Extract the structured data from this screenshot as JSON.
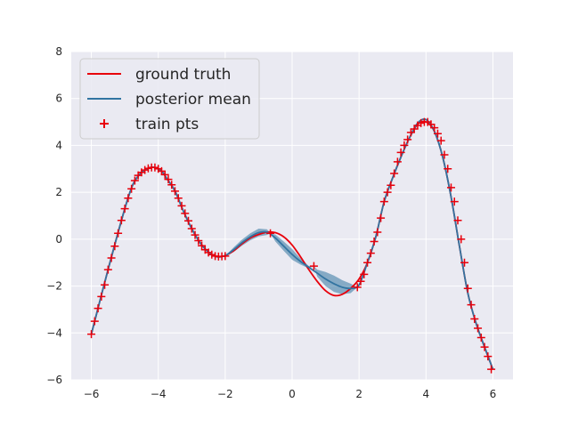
{
  "chart_data": {
    "type": "line",
    "title": "",
    "xlabel": "",
    "ylabel": "",
    "xlim": [
      -6.6,
      6.6
    ],
    "ylim": [
      -6,
      8
    ],
    "xticks": [
      -6,
      -4,
      -2,
      0,
      2,
      4,
      6
    ],
    "yticks": [
      -6,
      -4,
      -2,
      0,
      2,
      4,
      6,
      8
    ],
    "grid": true,
    "legend_position": "top-left",
    "colors": {
      "ground_truth": "#e8000b",
      "posterior_mean": "#3274a1",
      "band": "#3274a1",
      "train_pts": "#e8000b",
      "axes_bg": "#eaeaf2",
      "grid": "#ffffff"
    },
    "series": [
      {
        "name": "ground truth",
        "style": "line",
        "x": [
          -6.0,
          -5.5,
          -5.0,
          -4.75,
          -4.5,
          -4.25,
          -4.1,
          -3.9,
          -3.75,
          -3.5,
          -3.25,
          -3.0,
          -2.75,
          -2.5,
          -2.25,
          -2.0,
          -1.75,
          -1.5,
          -1.25,
          -1.0,
          -0.75,
          -0.5,
          -0.25,
          0.0,
          0.25,
          0.5,
          0.75,
          1.0,
          1.25,
          1.5,
          1.75,
          2.0,
          2.25,
          2.5,
          2.75,
          3.0,
          3.25,
          3.5,
          3.75,
          4.0,
          4.25,
          4.5,
          4.75,
          5.0,
          5.25,
          5.5,
          5.75,
          6.0
        ],
        "y": [
          -4.05,
          -1.3,
          1.3,
          2.35,
          2.85,
          3.05,
          3.05,
          2.9,
          2.6,
          2.05,
          1.2,
          0.45,
          -0.15,
          -0.55,
          -0.75,
          -0.7,
          -0.5,
          -0.2,
          0.05,
          0.2,
          0.3,
          0.28,
          0.1,
          -0.25,
          -0.75,
          -1.3,
          -1.8,
          -2.2,
          -2.4,
          -2.35,
          -2.1,
          -1.7,
          -1.0,
          0.1,
          1.6,
          2.6,
          3.5,
          4.3,
          4.9,
          5.0,
          4.6,
          3.5,
          1.8,
          -0.3,
          -2.3,
          -3.6,
          -4.6,
          -5.55
        ]
      },
      {
        "name": "posterior mean",
        "style": "line",
        "x": [
          -6.0,
          -5.5,
          -5.0,
          -4.75,
          -4.5,
          -4.25,
          -4.1,
          -3.9,
          -3.75,
          -3.5,
          -3.25,
          -3.0,
          -2.75,
          -2.5,
          -2.25,
          -2.0,
          -1.75,
          -1.5,
          -1.25,
          -1.0,
          -0.75,
          -0.5,
          -0.25,
          0.0,
          0.25,
          0.5,
          0.75,
          1.0,
          1.25,
          1.5,
          1.75,
          2.0,
          2.25,
          2.5,
          2.75,
          3.0,
          3.25,
          3.5,
          3.75,
          4.0,
          4.25,
          4.5,
          4.75,
          5.0,
          5.25,
          5.5,
          5.75,
          6.0
        ],
        "y": [
          -4.05,
          -1.3,
          1.3,
          2.35,
          2.85,
          3.05,
          3.05,
          2.9,
          2.6,
          2.05,
          1.2,
          0.45,
          -0.15,
          -0.55,
          -0.75,
          -0.7,
          -0.45,
          -0.15,
          0.1,
          0.28,
          0.3,
          0.05,
          -0.3,
          -0.65,
          -0.95,
          -1.2,
          -1.45,
          -1.7,
          -1.9,
          -2.05,
          -2.1,
          -1.95,
          -1.0,
          0.1,
          1.6,
          2.6,
          3.5,
          4.3,
          4.95,
          5.1,
          4.6,
          3.5,
          1.8,
          -0.3,
          -2.3,
          -3.6,
          -4.6,
          -5.55
        ]
      },
      {
        "name": "train pts",
        "style": "marker",
        "marker": "+",
        "x": [
          -6.0,
          -5.9,
          -5.8,
          -5.7,
          -5.6,
          -5.5,
          -5.4,
          -5.3,
          -5.2,
          -5.1,
          -5.0,
          -4.9,
          -4.8,
          -4.7,
          -4.6,
          -4.5,
          -4.4,
          -4.3,
          -4.2,
          -4.1,
          -4.0,
          -3.9,
          -3.8,
          -3.7,
          -3.6,
          -3.5,
          -3.4,
          -3.3,
          -3.2,
          -3.1,
          -3.0,
          -2.9,
          -2.8,
          -2.7,
          -2.6,
          -2.5,
          -2.4,
          -2.3,
          -2.2,
          -2.1,
          -2.0,
          -0.65,
          0.65,
          1.95,
          2.05,
          2.15,
          2.25,
          2.35,
          2.45,
          2.55,
          2.65,
          2.75,
          2.85,
          2.95,
          3.05,
          3.15,
          3.25,
          3.35,
          3.45,
          3.55,
          3.65,
          3.75,
          3.85,
          3.95,
          4.05,
          4.15,
          4.25,
          4.35,
          4.45,
          4.55,
          4.65,
          4.75,
          4.85,
          4.95,
          5.05,
          5.15,
          5.25,
          5.35,
          5.45,
          5.55,
          5.65,
          5.75,
          5.85,
          5.95
        ],
        "y": [
          -4.05,
          -3.5,
          -2.95,
          -2.45,
          -1.95,
          -1.3,
          -0.8,
          -0.3,
          0.25,
          0.8,
          1.3,
          1.75,
          2.15,
          2.5,
          2.72,
          2.85,
          2.95,
          3.02,
          3.06,
          3.06,
          3.0,
          2.9,
          2.75,
          2.55,
          2.32,
          2.05,
          1.75,
          1.42,
          1.1,
          0.78,
          0.45,
          0.18,
          -0.06,
          -0.28,
          -0.45,
          -0.57,
          -0.66,
          -0.72,
          -0.74,
          -0.73,
          -0.72,
          0.25,
          -1.15,
          -2.05,
          -1.8,
          -1.5,
          -1.0,
          -0.6,
          -0.1,
          0.3,
          0.9,
          1.6,
          2.0,
          2.3,
          2.8,
          3.3,
          3.7,
          4.0,
          4.25,
          4.55,
          4.7,
          4.85,
          4.95,
          5.0,
          5.0,
          4.9,
          4.75,
          4.5,
          4.2,
          3.6,
          3.0,
          2.2,
          1.6,
          0.8,
          0.0,
          -1.0,
          -2.1,
          -2.8,
          -3.4,
          -3.8,
          -4.2,
          -4.6,
          -5.0,
          -5.55
        ]
      }
    ],
    "uncertainty_band": {
      "x": [
        -2.0,
        -1.75,
        -1.5,
        -1.25,
        -1.0,
        -0.75,
        -0.65,
        -0.5,
        -0.25,
        0.0,
        0.25,
        0.5,
        0.65,
        0.75,
        1.0,
        1.25,
        1.5,
        1.75,
        1.95
      ],
      "lower": [
        -0.72,
        -0.55,
        -0.28,
        -0.05,
        0.12,
        0.18,
        0.25,
        -0.1,
        -0.5,
        -0.88,
        -1.08,
        -1.25,
        -1.15,
        -1.6,
        -2.0,
        -2.25,
        -2.35,
        -2.3,
        -2.05
      ],
      "upper": [
        -0.72,
        -0.35,
        -0.02,
        0.25,
        0.45,
        0.42,
        0.25,
        0.2,
        -0.1,
        -0.42,
        -0.82,
        -1.15,
        -1.15,
        -1.3,
        -1.4,
        -1.55,
        -1.75,
        -1.9,
        -2.05
      ]
    },
    "legend": [
      {
        "label": "ground truth",
        "kind": "line",
        "color": "#e8000b"
      },
      {
        "label": "posterior mean",
        "kind": "line",
        "color": "#3274a1"
      },
      {
        "label": "train pts",
        "kind": "marker",
        "color": "#e8000b"
      }
    ]
  }
}
